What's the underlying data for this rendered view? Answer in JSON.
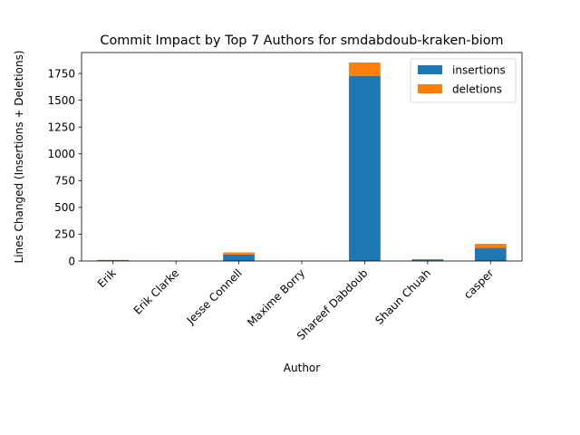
{
  "chart_data": {
    "type": "bar",
    "stacked": true,
    "title": "Commit Impact by Top 7 Authors for smdabdoub-kraken-biom",
    "xlabel": "Author",
    "ylabel": "Lines Changed (Insertions + Deletions)",
    "categories": [
      "Erik",
      "Erik Clarke",
      "Jesse Connell",
      "Maxime Borry",
      "Shareef Dabdoub",
      "Shaun Chuah",
      "casper"
    ],
    "series": [
      {
        "name": "insertions",
        "color": "#1f77b4",
        "values": [
          8,
          1,
          60,
          1,
          1728,
          14,
          122
        ]
      },
      {
        "name": "deletions",
        "color": "#ff7f0e",
        "values": [
          2,
          1,
          20,
          1,
          124,
          4,
          38
        ]
      }
    ],
    "ylim": [
      0,
      1945
    ],
    "yticks": [
      0,
      250,
      500,
      750,
      1000,
      1250,
      1500,
      1750
    ],
    "grid": false,
    "legend_position": "top-right"
  }
}
